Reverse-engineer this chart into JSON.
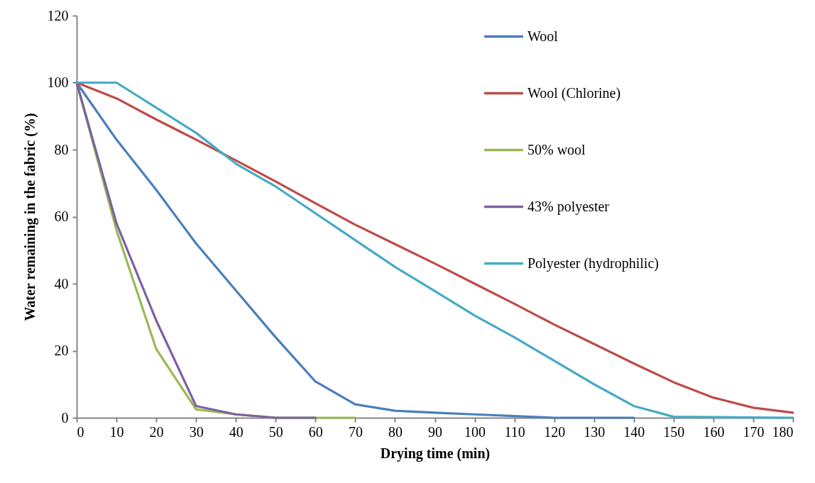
{
  "chart_data": {
    "type": "line",
    "xlabel": "Drying time (min)",
    "ylabel": "Water remaining in the fabric (%)",
    "xlim": [
      0,
      180
    ],
    "xticks": [
      0,
      10,
      20,
      30,
      40,
      50,
      60,
      70,
      80,
      90,
      100,
      110,
      120,
      130,
      140,
      150,
      160,
      170,
      180
    ],
    "ylim": [
      0,
      120
    ],
    "yticks": [
      0,
      20,
      40,
      60,
      80,
      100,
      120
    ],
    "grid": false,
    "legend": "top right",
    "marker": "none",
    "line_style": "solid",
    "series": [
      {
        "name": "Wool",
        "color": "#4a7ebb",
        "x": [
          0,
          10,
          20,
          30,
          40,
          50,
          60,
          70,
          80,
          90,
          100,
          110,
          120,
          130,
          140
        ],
        "values": [
          100,
          83,
          68,
          52,
          38,
          24,
          10.8,
          4,
          2.1,
          1.5,
          1,
          0.5,
          0,
          0,
          0
        ]
      },
      {
        "name": "Wool (Chlorine)",
        "color": "#be4b48",
        "x": [
          0,
          10,
          20,
          30,
          40,
          50,
          60,
          70,
          80,
          90,
          100,
          110,
          120,
          130,
          140,
          150,
          160,
          170,
          180
        ],
        "values": [
          100,
          95.3,
          89,
          83,
          76.8,
          70.5,
          64,
          57.6,
          51.8,
          46,
          40,
          34,
          27.8,
          22,
          16.2,
          10.6,
          6,
          3,
          1.5
        ]
      },
      {
        "name": "50% wool",
        "color": "#98b954",
        "x": [
          0,
          10,
          20,
          30,
          40,
          50,
          60,
          70
        ],
        "values": [
          100,
          56,
          20.5,
          2.5,
          1,
          0,
          0,
          0
        ]
      },
      {
        "name": "43% polyester",
        "color": "#7d60a0",
        "x": [
          0,
          10,
          20,
          30,
          40,
          50,
          60
        ],
        "values": [
          100,
          58,
          29,
          3.5,
          1,
          0,
          0
        ]
      },
      {
        "name": "Polyester (hydrophilic)",
        "color": "#46aac5",
        "x": [
          0,
          10,
          20,
          30,
          40,
          50,
          60,
          70,
          80,
          90,
          100,
          110,
          120,
          130,
          140,
          150,
          160,
          170,
          180
        ],
        "values": [
          100,
          100,
          92.5,
          85,
          75.8,
          69,
          61,
          53,
          45,
          37.8,
          30.5,
          24,
          17,
          10,
          3.5,
          0.3,
          0.2,
          0.1,
          0
        ]
      }
    ]
  }
}
